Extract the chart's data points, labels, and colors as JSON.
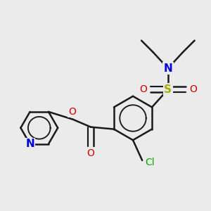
{
  "bg_color": "#ebebeb",
  "bond_color": "#1a1a1a",
  "bond_lw": 1.8,
  "colors": {
    "N": "#0000dd",
    "O": "#cc0000",
    "S": "#aaaa00",
    "Cl": "#00aa00",
    "C": "#1a1a1a"
  },
  "xlim": [
    -2.6,
    2.4
  ],
  "ylim": [
    -2.5,
    2.5
  ]
}
